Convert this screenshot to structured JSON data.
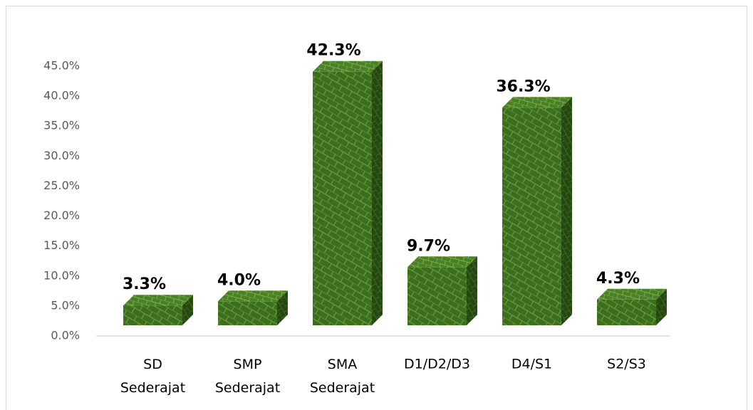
{
  "chart_data": {
    "type": "bar3d",
    "categories": [
      "SD Sederajat",
      "SMP Sederajat",
      "SMA Sederajat",
      "D1/D2/D3",
      "D4/S1",
      "S2/S3"
    ],
    "values": [
      3.3,
      4.0,
      42.3,
      9.7,
      36.3,
      4.3
    ],
    "value_labels": [
      "3.3%",
      "4.0%",
      "42.3%",
      "9.7%",
      "36.3%",
      "4.3%"
    ],
    "color": "#3b6e1f",
    "ylim": [
      0,
      45
    ],
    "yticks": [
      {
        "value": 0,
        "label": "0.0%"
      },
      {
        "value": 5,
        "label": "5.0%"
      },
      {
        "value": 10,
        "label": "10.0%"
      },
      {
        "value": 15,
        "label": "15.0%"
      },
      {
        "value": 20,
        "label": "20.0%"
      },
      {
        "value": 25,
        "label": "25.0%"
      },
      {
        "value": 30,
        "label": "30.0%"
      },
      {
        "value": 35,
        "label": "35.0%"
      },
      {
        "value": 40,
        "label": "40.0%"
      },
      {
        "value": 45,
        "label": "45.0%"
      }
    ],
    "grid": false
  }
}
